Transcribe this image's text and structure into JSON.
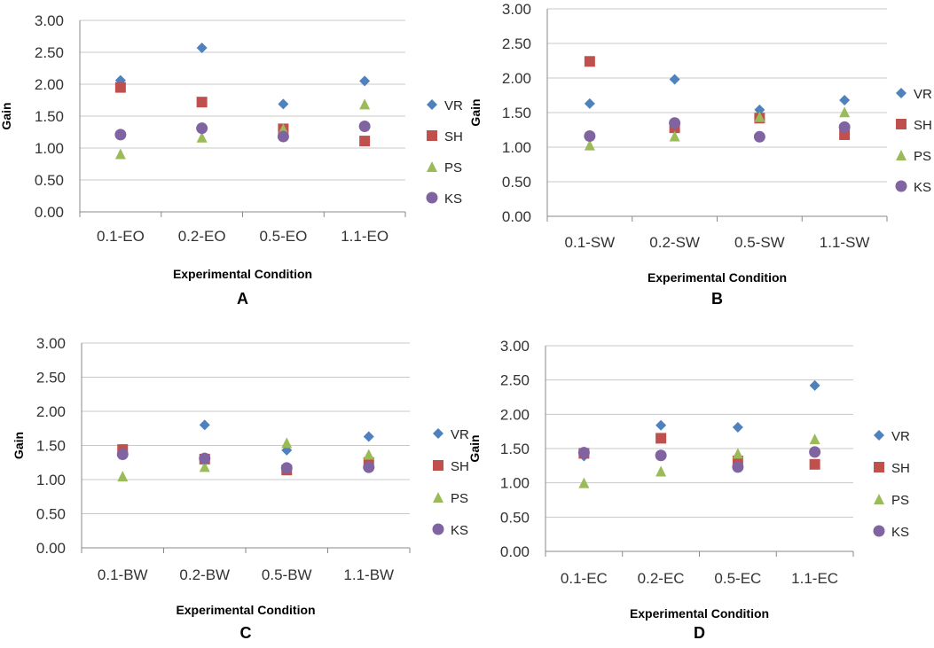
{
  "figure": {
    "colors": {
      "VR": "#4f81bd",
      "SH": "#c0504d",
      "PS": "#9bbb59",
      "KS": "#8064a2",
      "grid": "#c8c8c8",
      "axis": "#888888"
    }
  },
  "chart_data": [
    {
      "type": "scatter",
      "panel_label": "A",
      "categories": [
        "0.1-EO",
        "0.2-EO",
        "0.5-EO",
        "1.1-EO"
      ],
      "xlabel": "Experimental Condition",
      "ylabel": "Gain",
      "ylim": [
        0,
        3
      ],
      "yticks": [
        "0.00",
        "0.50",
        "1.00",
        "1.50",
        "2.00",
        "2.50",
        "3.00"
      ],
      "grid": true,
      "legend_position": "right",
      "series": [
        {
          "name": "VR",
          "values": [
            2.06,
            2.57,
            1.69,
            2.05
          ]
        },
        {
          "name": "SH",
          "values": [
            1.95,
            1.72,
            1.3,
            1.11
          ]
        },
        {
          "name": "PS",
          "values": [
            0.91,
            1.17,
            1.3,
            1.69
          ]
        },
        {
          "name": "KS",
          "values": [
            1.21,
            1.31,
            1.18,
            1.34
          ]
        }
      ]
    },
    {
      "type": "scatter",
      "panel_label": "B",
      "categories": [
        "0.1-SW",
        "0.2-SW",
        "0.5-SW",
        "1.1-SW"
      ],
      "xlabel": "Experimental Condition",
      "ylabel": "Gain",
      "ylim": [
        0,
        3
      ],
      "yticks": [
        "0.00",
        "0.50",
        "1.00",
        "1.50",
        "2.00",
        "2.50",
        "3.00"
      ],
      "grid": true,
      "legend_position": "right",
      "series": [
        {
          "name": "VR",
          "values": [
            1.63,
            1.98,
            1.54,
            1.68
          ]
        },
        {
          "name": "SH",
          "values": [
            2.24,
            1.28,
            1.42,
            1.18
          ]
        },
        {
          "name": "PS",
          "values": [
            1.03,
            1.16,
            1.44,
            1.51
          ]
        },
        {
          "name": "KS",
          "values": [
            1.16,
            1.35,
            1.15,
            1.29
          ]
        }
      ]
    },
    {
      "type": "scatter",
      "panel_label": "C",
      "categories": [
        "0.1-BW",
        "0.2-BW",
        "0.5-BW",
        "1.1-BW"
      ],
      "xlabel": "Experimental Condition",
      "ylabel": "Gain",
      "ylim": [
        0,
        3
      ],
      "yticks": [
        "0.00",
        "0.50",
        "1.00",
        "1.50",
        "2.00",
        "2.50",
        "3.00"
      ],
      "grid": true,
      "legend_position": "right",
      "series": [
        {
          "name": "VR",
          "values": [
            1.4,
            1.8,
            1.43,
            1.63
          ]
        },
        {
          "name": "SH",
          "values": [
            1.44,
            1.3,
            1.14,
            1.25
          ]
        },
        {
          "name": "PS",
          "values": [
            1.05,
            1.19,
            1.54,
            1.37
          ]
        },
        {
          "name": "KS",
          "values": [
            1.37,
            1.31,
            1.17,
            1.18
          ]
        }
      ]
    },
    {
      "type": "scatter",
      "panel_label": "D",
      "categories": [
        "0.1-EC",
        "0.2-EC",
        "0.5-EC",
        "1.1-EC"
      ],
      "xlabel": "Experimental Condition",
      "ylabel": "Gain",
      "ylim": [
        0,
        3
      ],
      "yticks": [
        "0.00",
        "0.50",
        "1.00",
        "1.50",
        "2.00",
        "2.50",
        "3.00"
      ],
      "grid": true,
      "legend_position": "right",
      "series": [
        {
          "name": "VR",
          "values": [
            1.39,
            1.84,
            1.81,
            2.42
          ]
        },
        {
          "name": "SH",
          "values": [
            1.43,
            1.65,
            1.32,
            1.27
          ]
        },
        {
          "name": "PS",
          "values": [
            1.0,
            1.17,
            1.43,
            1.64
          ]
        },
        {
          "name": "KS",
          "values": [
            1.44,
            1.4,
            1.23,
            1.45
          ]
        }
      ]
    }
  ]
}
